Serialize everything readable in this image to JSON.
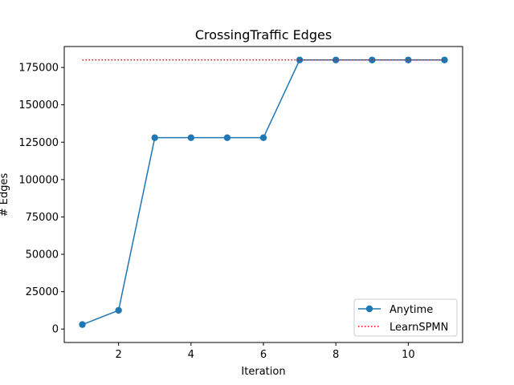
{
  "chart_data": {
    "type": "line",
    "title": "CrossingTraffic Edges",
    "xlabel": "Iteration",
    "ylabel": "# Edges",
    "xlim": [
      0.5,
      11.5
    ],
    "ylim": [
      -9000,
      189000
    ],
    "xticks": [
      2,
      4,
      6,
      8,
      10
    ],
    "yticks": [
      0,
      25000,
      50000,
      75000,
      100000,
      125000,
      150000,
      175000
    ],
    "grid": false,
    "legend_position": "lower-right",
    "series": [
      {
        "name": "Anytime",
        "style": "solid-with-circle-markers",
        "color": "#1f77b4",
        "x": [
          1,
          2,
          3,
          4,
          5,
          6,
          7,
          8,
          9,
          10,
          11
        ],
        "y": [
          3000,
          12500,
          128000,
          128000,
          128000,
          128000,
          180000,
          180000,
          180000,
          180000,
          180000
        ]
      },
      {
        "name": "LearnSPMN",
        "style": "dotted",
        "color": "#ff0000",
        "x": [
          1,
          11
        ],
        "y": [
          180000,
          180000
        ]
      }
    ]
  }
}
